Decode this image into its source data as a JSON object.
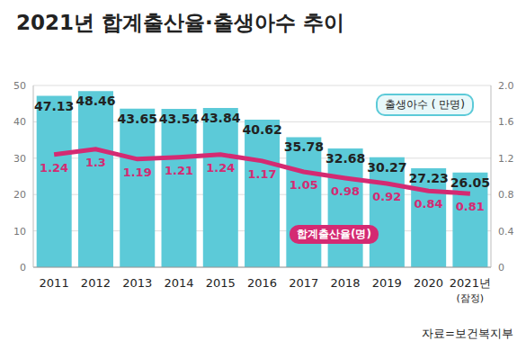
{
  "chart_data": {
    "type": "bar",
    "title": "2021년 합계출산율·출생아수 추이",
    "source": "자료=보건복지부",
    "categories": [
      "2011",
      "2012",
      "2013",
      "2014",
      "2015",
      "2016",
      "2017",
      "2018",
      "2019",
      "2020",
      "2021년\n(잠정)"
    ],
    "series": [
      {
        "name": "출생아수 ( 만명)",
        "type": "bar",
        "color": "#5ccad8",
        "values": [
          47.13,
          48.46,
          43.65,
          43.54,
          43.84,
          40.62,
          35.78,
          32.68,
          30.27,
          27.23,
          26.05
        ]
      },
      {
        "name": "합계출산율(명)",
        "type": "line",
        "axis": "y2",
        "color": "#d42a72",
        "values": [
          1.24,
          1.3,
          1.19,
          1.21,
          1.24,
          1.17,
          1.05,
          0.98,
          0.92,
          0.84,
          0.81
        ]
      }
    ],
    "ylim": [
      0,
      50
    ],
    "yticks": [
      0,
      10,
      20,
      30,
      40,
      50
    ],
    "y2lim": [
      0,
      2
    ],
    "y2ticks": [
      0,
      0.4,
      0.8,
      1.2,
      1.6,
      {
        "value": 2,
        "label": "2.0"
      }
    ],
    "grid": true,
    "data_labels": true
  }
}
